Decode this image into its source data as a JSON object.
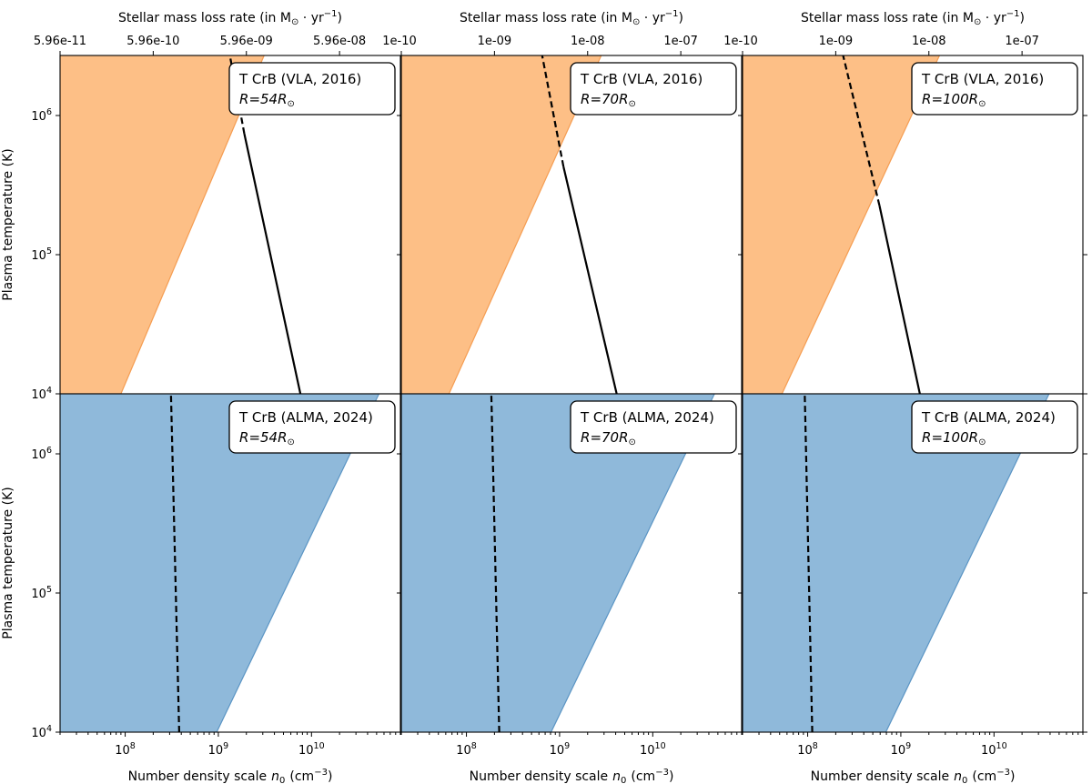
{
  "chart_data": {
    "type": "area",
    "layout": {
      "rows": 2,
      "cols": 3
    },
    "x_axis": {
      "label": "Number density scale",
      "symbol": "n",
      "subscript": "0",
      "unit": "(cm",
      "unit_exp": "−3",
      "unit_close": ")",
      "scale": "log",
      "lim": [
        20000000.0,
        90000000000.0
      ],
      "major_ticks": [
        {
          "value": 100000000.0,
          "base": "10",
          "exp": "8"
        },
        {
          "value": 1000000000.0,
          "base": "10",
          "exp": "9"
        },
        {
          "value": 10000000000.0,
          "base": "10",
          "exp": "10"
        }
      ]
    },
    "y_axis": {
      "label": "Plasma temperature (K)",
      "scale": "log",
      "lim": [
        10000.0,
        2700000.0
      ],
      "major_ticks": [
        {
          "value": 10000.0,
          "base": "10",
          "exp": "4"
        },
        {
          "value": 100000.0,
          "base": "10",
          "exp": "5"
        },
        {
          "value": 1000000.0,
          "base": "10",
          "exp": "6"
        }
      ]
    },
    "top_axis": {
      "label_prefix": "Stellar mass loss rate (in M",
      "sun_symbol": "⊙",
      "label_mid": " · yr",
      "label_exp": "−1",
      "label_close": ")",
      "columns": [
        {
          "ticks": [
            {
              "n0": 20000000.0,
              "label": "5.96e-11"
            },
            {
              "n0": 200000000.0,
              "label": "5.96e-10"
            },
            {
              "n0": 2000000000.0,
              "label": "5.96e-09"
            },
            {
              "n0": 20000000000.0,
              "label": "5.96e-08"
            }
          ]
        },
        {
          "ticks": [
            {
              "n0": 20000000.0,
              "label": "1e-10"
            },
            {
              "n0": 200000000.0,
              "label": "1e-09"
            },
            {
              "n0": 2000000000.0,
              "label": "1e-08"
            },
            {
              "n0": 20000000000.0,
              "label": "1e-07"
            }
          ]
        },
        {
          "ticks": [
            {
              "n0": 20000000.0,
              "label": "1e-10"
            },
            {
              "n0": 200000000.0,
              "label": "1e-09"
            },
            {
              "n0": 2000000000.0,
              "label": "1e-08"
            },
            {
              "n0": 20000000000.0,
              "label": "1e-07"
            }
          ]
        }
      ]
    },
    "panels": [
      {
        "row": 0,
        "col": 0,
        "title": "T CrB (VLA, 2016)",
        "radius_prefix": "R",
        "radius_value": "=54R",
        "radius_sub": "⊙",
        "region_color": "#fdbf86",
        "region_edge": "#f59d52",
        "region": {
          "left_bound": 20000000.0,
          "right_edge_bottom": {
            "n0": 90000000.0,
            "T": 10000.0
          },
          "right_edge_top": {
            "n0": 3100000000.0,
            "T": 2700000.0
          }
        },
        "curve": {
          "points": [
            {
              "n0": 7600000000.0,
              "T": 10000.0
            },
            {
              "n0": 1900000000.0,
              "T": 740000.0
            },
            {
              "n0": 1330000000.0,
              "T": 2700000.0
            }
          ],
          "solid_from_index": 0,
          "dashed_from_index": 1
        }
      },
      {
        "row": 0,
        "col": 1,
        "title": "T CrB (VLA, 2016)",
        "radius_prefix": "R",
        "radius_value": "=70R",
        "radius_sub": "⊙",
        "region_color": "#fdbf86",
        "region_edge": "#f59d52",
        "region": {
          "left_bound": 20000000.0,
          "right_edge_bottom": {
            "n0": 65000000.0,
            "T": 10000.0
          },
          "right_edge_top": {
            "n0": 2800000000.0,
            "T": 2700000.0
          }
        },
        "curve": {
          "points": [
            {
              "n0": 4100000000.0,
              "T": 10000.0
            },
            {
              "n0": 1100000000.0,
              "T": 430000.0
            },
            {
              "n0": 650000000.0,
              "T": 2700000.0
            }
          ],
          "solid_from_index": 0,
          "dashed_from_index": 1
        }
      },
      {
        "row": 0,
        "col": 2,
        "title": "T CrB (VLA, 2016)",
        "radius_prefix": "R",
        "radius_value": "=100R",
        "radius_sub": "⊙",
        "region_color": "#fdbf86",
        "region_edge": "#f59d52",
        "region": {
          "left_bound": 20000000.0,
          "right_edge_bottom": {
            "n0": 53000000.0,
            "T": 10000.0
          },
          "right_edge_top": {
            "n0": 2600000000.0,
            "T": 2700000.0
          }
        },
        "curve": {
          "points": [
            {
              "n0": 1600000000.0,
              "T": 10000.0
            },
            {
              "n0": 590000000.0,
              "T": 225000.0
            },
            {
              "n0": 240000000.0,
              "T": 2700000.0
            }
          ],
          "solid_from_index": 0,
          "dashed_from_index": 1
        }
      },
      {
        "row": 1,
        "col": 0,
        "title": "T CrB (ALMA, 2024)",
        "radius_prefix": "R",
        "radius_value": "=54R",
        "radius_sub": "⊙",
        "region_color": "#8fb9da",
        "region_edge": "#5b95c4",
        "region": {
          "left_bound": 20000000.0,
          "right_edge_bottom": {
            "n0": 960000000.0,
            "T": 10000.0
          },
          "right_edge_top": {
            "n0": 53000000000.0,
            "T": 2700000.0
          }
        },
        "curve": {
          "points": [
            {
              "n0": 380000000.0,
              "T": 10000.0
            },
            {
              "n0": 310000000.0,
              "T": 2700000.0
            }
          ],
          "solid_from_index": -1,
          "dashed_from_index": 0
        }
      },
      {
        "row": 1,
        "col": 1,
        "title": "T CrB (ALMA, 2024)",
        "radius_prefix": "R",
        "radius_value": "=70R",
        "radius_sub": "⊙",
        "region_color": "#8fb9da",
        "region_edge": "#5b95c4",
        "region": {
          "left_bound": 20000000.0,
          "right_edge_bottom": {
            "n0": 810000000.0,
            "T": 10000.0
          },
          "right_edge_top": {
            "n0": 46000000000.0,
            "T": 2700000.0
          }
        },
        "curve": {
          "points": [
            {
              "n0": 225000000.0,
              "T": 10000.0
            },
            {
              "n0": 185000000.0,
              "T": 2700000.0
            }
          ],
          "solid_from_index": -1,
          "dashed_from_index": 0
        }
      },
      {
        "row": 1,
        "col": 2,
        "title": "T CrB (ALMA, 2024)",
        "radius_prefix": "R",
        "radius_value": "=100R",
        "radius_sub": "⊙",
        "region_color": "#8fb9da",
        "region_edge": "#5b95c4",
        "region": {
          "left_bound": 20000000.0,
          "right_edge_bottom": {
            "n0": 690000000.0,
            "T": 10000.0
          },
          "right_edge_top": {
            "n0": 39000000000.0,
            "T": 2700000.0
          }
        },
        "curve": {
          "points": [
            {
              "n0": 112000000.0,
              "T": 10000.0
            },
            {
              "n0": 93000000.0,
              "T": 2700000.0
            }
          ],
          "solid_from_index": -1,
          "dashed_from_index": 0
        }
      }
    ]
  }
}
